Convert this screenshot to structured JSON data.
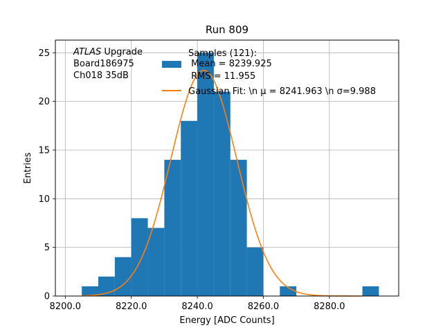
{
  "chart_data": {
    "type": "bar",
    "title": "Run 809",
    "xlabel": "Energy [ADC Counts]",
    "ylabel": "Entries",
    "xlim": [
      8197.0,
      8301.0
    ],
    "ylim": [
      0,
      26.3
    ],
    "xticks": [
      8200,
      8220,
      8240,
      8260,
      8280
    ],
    "xtick_labels": [
      "8200.0",
      "8220.0",
      "8240.0",
      "8260.0",
      "8280.0"
    ],
    "yticks": [
      0,
      5,
      10,
      15,
      20,
      25
    ],
    "ytick_labels": [
      "0",
      "5",
      "10",
      "15",
      "20",
      "25"
    ],
    "grid": true,
    "series": [
      {
        "name": "Samples",
        "kind": "histogram",
        "color": "#1f77b4",
        "bins": [
          {
            "left": 8205,
            "right": 8210,
            "count": 1
          },
          {
            "left": 8210,
            "right": 8215,
            "count": 2
          },
          {
            "left": 8215,
            "right": 8220,
            "count": 4
          },
          {
            "left": 8220,
            "right": 8225,
            "count": 8
          },
          {
            "left": 8225,
            "right": 8230,
            "count": 7
          },
          {
            "left": 8230,
            "right": 8235,
            "count": 14
          },
          {
            "left": 8235,
            "right": 8240,
            "count": 18
          },
          {
            "left": 8240,
            "right": 8245,
            "count": 25
          },
          {
            "left": 8245,
            "right": 8250,
            "count": 21
          },
          {
            "left": 8250,
            "right": 8255,
            "count": 14
          },
          {
            "left": 8255,
            "right": 8260,
            "count": 5
          },
          {
            "left": 8265,
            "right": 8270,
            "count": 1
          },
          {
            "left": 8290,
            "right": 8295,
            "count": 1
          }
        ]
      },
      {
        "name": "Gaussian Fit",
        "kind": "gaussian",
        "color": "#ff7f0e",
        "mu": 8241.963,
        "sigma": 9.988,
        "amplitude": 23.2,
        "x_range": [
          8205.0,
          8290.0
        ]
      }
    ],
    "annotation": {
      "lines": [
        {
          "italic": "ATLAS",
          "normal": " Upgrade"
        },
        {
          "italic": "",
          "normal": " Board186975"
        },
        {
          "italic": "",
          "normal": " Ch018 35dB"
        }
      ]
    },
    "legend": {
      "placement": "top-right",
      "entries": [
        {
          "marker": "patch",
          "lines": [
            "Samples (121):",
            " Mean = 8239.925",
            " RMS = 11.955"
          ]
        },
        {
          "marker": "line",
          "lines": [
            "Gaussian Fit: \\n μ = 8241.963 \\n σ=9.988"
          ]
        }
      ]
    }
  }
}
